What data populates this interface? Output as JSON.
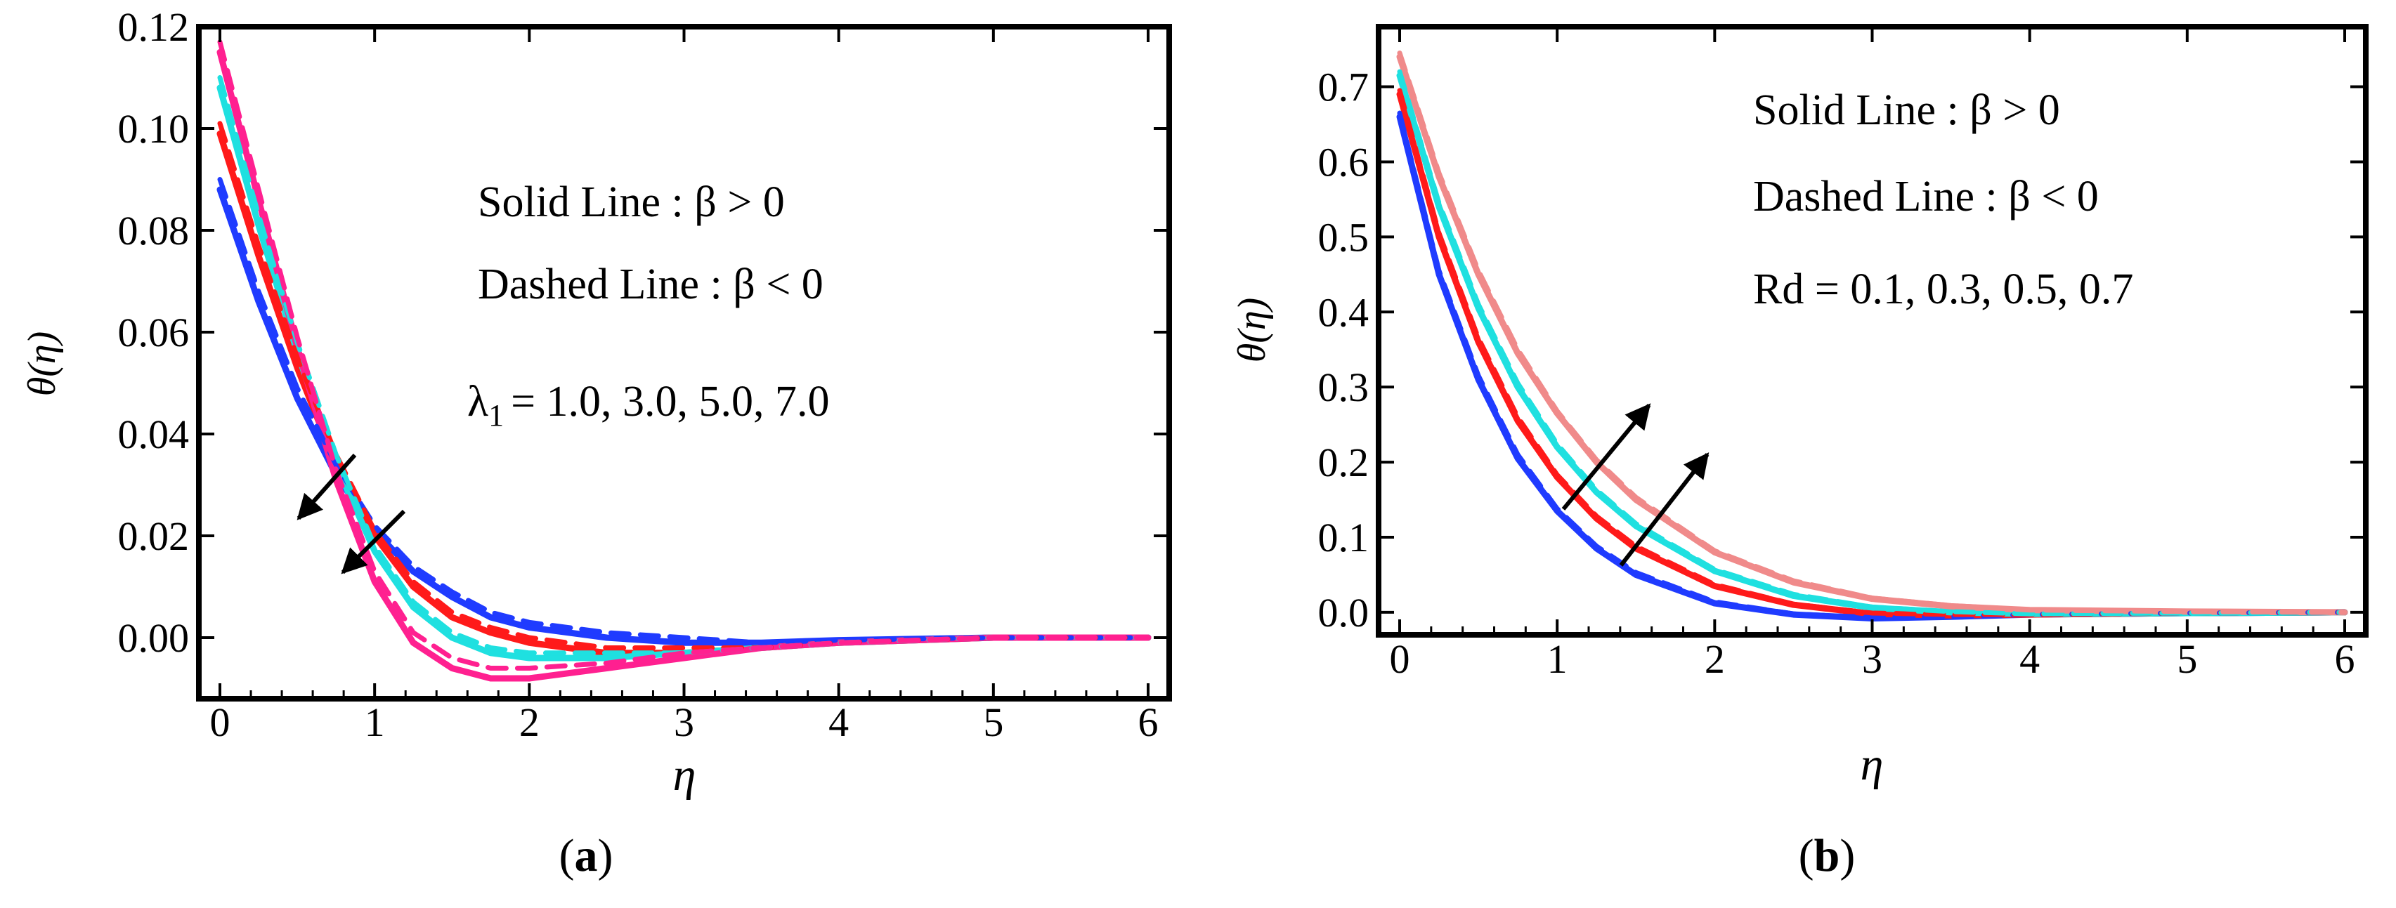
{
  "chart_data": [
    {
      "type": "line",
      "panel_label": "a",
      "xlabel": "η",
      "ylabel": "θ(η)",
      "xlim": [
        0,
        6
      ],
      "ylim": [
        -0.012,
        0.12
      ],
      "xticks": [
        "0",
        "1",
        "2",
        "3",
        "4",
        "5",
        "6"
      ],
      "yticks": [
        "0.12",
        "0.10",
        "0.08",
        "0.06",
        "0.04",
        "0.02",
        "0.00"
      ],
      "ytick_values": [
        0.12,
        0.1,
        0.08,
        0.06,
        0.04,
        0.02,
        0.0
      ],
      "grid": false,
      "annotations": {
        "solid": "Solid Line : β > 0",
        "dashed": "Dashed Line : β < 0",
        "param_label": "λ",
        "param_sub": "1",
        "param_values": "=  1.0,  3.0,  5.0,  7.0"
      },
      "x": [
        0,
        0.25,
        0.5,
        0.75,
        1.0,
        1.25,
        1.5,
        1.75,
        2.0,
        2.5,
        3.0,
        3.5,
        4.0,
        5.0,
        6.0
      ],
      "series": [
        {
          "color": "#1f3bff",
          "style": "solid",
          "values": [
            0.088,
            0.066,
            0.047,
            0.032,
            0.021,
            0.013,
            0.008,
            0.004,
            0.002,
            0.0,
            -0.001,
            -0.001,
            -0.0005,
            0,
            0
          ]
        },
        {
          "color": "#ff1a1a",
          "style": "solid",
          "values": [
            0.099,
            0.075,
            0.053,
            0.034,
            0.02,
            0.01,
            0.004,
            0.001,
            -0.001,
            -0.003,
            -0.003,
            -0.002,
            -0.001,
            0,
            0
          ]
        },
        {
          "color": "#1fe0e0",
          "style": "solid",
          "values": [
            0.108,
            0.081,
            0.056,
            0.034,
            0.017,
            0.006,
            0.0,
            -0.003,
            -0.004,
            -0.004,
            -0.003,
            -0.002,
            -0.001,
            0,
            0
          ]
        },
        {
          "color": "#ff2090",
          "style": "solid",
          "values": [
            0.115,
            0.086,
            0.057,
            0.031,
            0.011,
            -0.001,
            -0.006,
            -0.008,
            -0.008,
            -0.006,
            -0.004,
            -0.002,
            -0.001,
            0,
            0
          ]
        },
        {
          "color": "#1f3bff",
          "style": "dashed",
          "values": [
            0.09,
            0.068,
            0.049,
            0.034,
            0.022,
            0.014,
            0.009,
            0.005,
            0.003,
            0.001,
            0.0,
            -0.001,
            -0.0005,
            0,
            0
          ]
        },
        {
          "color": "#ff1a1a",
          "style": "dashed",
          "values": [
            0.101,
            0.077,
            0.055,
            0.036,
            0.021,
            0.011,
            0.005,
            0.002,
            0.0,
            -0.002,
            -0.002,
            -0.002,
            -0.001,
            0,
            0
          ]
        },
        {
          "color": "#1fe0e0",
          "style": "dashed",
          "values": [
            0.11,
            0.083,
            0.058,
            0.036,
            0.018,
            0.007,
            0.001,
            -0.002,
            -0.003,
            -0.003,
            -0.003,
            -0.002,
            -0.001,
            0,
            0
          ]
        },
        {
          "color": "#ff2090",
          "style": "dashed",
          "values": [
            0.117,
            0.088,
            0.059,
            0.033,
            0.013,
            0.001,
            -0.004,
            -0.006,
            -0.006,
            -0.005,
            -0.003,
            -0.002,
            -0.001,
            0,
            0
          ]
        }
      ]
    },
    {
      "type": "line",
      "panel_label": "b",
      "xlabel": "η",
      "ylabel": "θ(η)",
      "xlim": [
        0,
        6
      ],
      "ylim": [
        -0.03,
        0.78
      ],
      "xticks": [
        "0",
        "1",
        "2",
        "3",
        "4",
        "5",
        "6"
      ],
      "yticks": [
        "0.7",
        "0.6",
        "0.5",
        "0.4",
        "0.3",
        "0.2",
        "0.1",
        "0.0"
      ],
      "ytick_values": [
        0.7,
        0.6,
        0.5,
        0.4,
        0.3,
        0.2,
        0.1,
        0.0
      ],
      "grid": false,
      "annotations": {
        "solid": "Solid Line : β > 0",
        "dashed": "Dashed Line : β < 0",
        "param_line": "Rd = 0.1, 0.3, 0.5, 0.7"
      },
      "x": [
        0,
        0.25,
        0.5,
        0.75,
        1.0,
        1.25,
        1.5,
        2.0,
        2.5,
        3.0,
        3.5,
        4.0,
        5.0,
        6.0
      ],
      "series": [
        {
          "color": "#1f3bff",
          "style": "solid",
          "values": [
            0.66,
            0.45,
            0.31,
            0.205,
            0.135,
            0.085,
            0.05,
            0.012,
            -0.003,
            -0.008,
            -0.006,
            -0.003,
            -0.001,
            0
          ]
        },
        {
          "color": "#ff1a1a",
          "style": "solid",
          "values": [
            0.69,
            0.5,
            0.36,
            0.255,
            0.18,
            0.125,
            0.085,
            0.035,
            0.01,
            -0.002,
            -0.004,
            -0.003,
            -0.001,
            0
          ]
        },
        {
          "color": "#1fe0e0",
          "style": "solid",
          "values": [
            0.715,
            0.54,
            0.405,
            0.3,
            0.22,
            0.16,
            0.115,
            0.055,
            0.022,
            0.006,
            0.0,
            -0.002,
            -0.001,
            0
          ]
        },
        {
          "color": "#f08a8a",
          "style": "solid",
          "values": [
            0.74,
            0.58,
            0.45,
            0.345,
            0.265,
            0.2,
            0.15,
            0.08,
            0.04,
            0.018,
            0.008,
            0.003,
            0.001,
            0
          ]
        },
        {
          "color": "#1f3bff",
          "style": "dashed",
          "values": [
            0.665,
            0.455,
            0.315,
            0.21,
            0.138,
            0.088,
            0.053,
            0.014,
            -0.002,
            -0.007,
            -0.006,
            -0.003,
            -0.001,
            0
          ]
        },
        {
          "color": "#ff1a1a",
          "style": "dashed",
          "values": [
            0.695,
            0.505,
            0.365,
            0.26,
            0.183,
            0.128,
            0.088,
            0.037,
            0.011,
            -0.001,
            -0.003,
            -0.003,
            -0.001,
            0
          ]
        },
        {
          "color": "#1fe0e0",
          "style": "dashed",
          "values": [
            0.72,
            0.545,
            0.41,
            0.305,
            0.224,
            0.163,
            0.118,
            0.057,
            0.024,
            0.007,
            0.001,
            -0.002,
            -0.001,
            0
          ]
        },
        {
          "color": "#f08a8a",
          "style": "dashed",
          "values": [
            0.745,
            0.585,
            0.455,
            0.35,
            0.268,
            0.203,
            0.153,
            0.082,
            0.042,
            0.019,
            0.009,
            0.003,
            0.001,
            0
          ]
        }
      ]
    }
  ]
}
